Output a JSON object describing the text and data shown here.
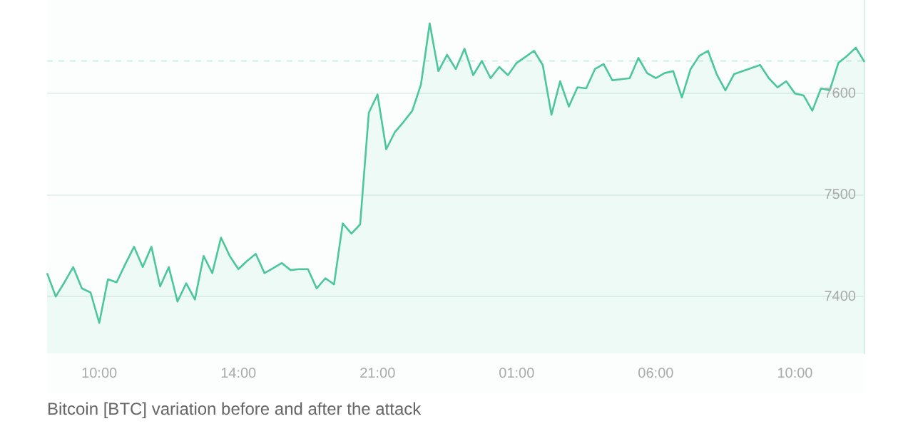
{
  "chart_data": {
    "type": "area",
    "annotations": [
      "Bitcoin [BTC] variation before and after the attack"
    ],
    "categories": [
      null,
      null,
      null,
      null,
      null,
      null,
      "10:00",
      null,
      null,
      null,
      null,
      null,
      null,
      null,
      null,
      null,
      null,
      null,
      null,
      null,
      null,
      null,
      "14:00",
      null,
      null,
      null,
      null,
      null,
      null,
      null,
      null,
      null,
      null,
      null,
      null,
      null,
      null,
      null,
      "21:00",
      null,
      null,
      null,
      null,
      null,
      null,
      null,
      null,
      null,
      null,
      null,
      null,
      null,
      null,
      null,
      "01:00",
      null,
      null,
      null,
      null,
      null,
      null,
      null,
      null,
      null,
      null,
      null,
      null,
      null,
      null,
      null,
      "06:00",
      null,
      null,
      null,
      null,
      null,
      null,
      null,
      null,
      null,
      null,
      null,
      null,
      null,
      null,
      null,
      "10:00",
      null,
      null,
      null,
      null,
      null,
      null,
      null,
      null
    ],
    "series": [
      {
        "color": "#4cc79c",
        "values": [
          7423,
          7400,
          7414,
          7429,
          7408,
          7404,
          7374,
          7417,
          7414,
          7432,
          7449,
          7429,
          7449,
          7410,
          7429,
          7395,
          7413,
          7397,
          7440,
          7423,
          7458,
          7440,
          7427,
          7435,
          7442,
          7423,
          7428,
          7433,
          7426,
          7427,
          7427,
          7408,
          7418,
          7412,
          7472,
          7462,
          7471,
          7581,
          7599,
          7545,
          7562,
          7572,
          7583,
          7609,
          7669,
          7622,
          7638,
          7624,
          7644,
          7618,
          7632,
          7615,
          7626,
          7618,
          7630,
          7636,
          7642,
          7628,
          7579,
          7612,
          7587,
          7606,
          7605,
          7624,
          7629,
          7613,
          7614,
          7615,
          7635,
          7620,
          7615,
          7620,
          7622,
          7596,
          7624,
          7637,
          7642,
          7619,
          7603,
          7619,
          7622,
          7625,
          7628,
          7615,
          7606,
          7612,
          7600,
          7598,
          7583,
          7605,
          7603,
          7630,
          7637,
          7645,
          7631
        ]
      }
    ],
    "ylim": [
      7344,
      7692
    ],
    "yticks": [
      7400,
      7500,
      7600
    ],
    "ref_lines": [
      {
        "axis": "y",
        "value": 7632,
        "color": "#d5eee5",
        "line_style": "dashed"
      }
    ],
    "grid": "y",
    "line_style": "solid",
    "marker": "none",
    "legend": false
  }
}
